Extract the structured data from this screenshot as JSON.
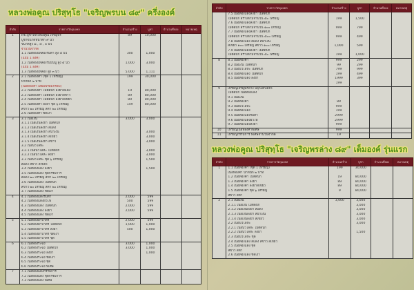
{
  "headers": [
    "ลำดับ",
    "รายการวัตถุมงคล",
    "จำนวนสร้าง",
    "บูชา",
    "จำนวนที่จอง",
    "หมายเหตุ"
  ],
  "colors": {
    "header_bg": "#6e1a22",
    "title_green": "#4f8f1e",
    "title_outline": "#f3e874"
  },
  "left": {
    "title": "หลวงพ่อคูณ ปริสุทฺโธ \"เจริญพรบน ๘๙\" ครึ่งองค์",
    "groups": [
      {
        "no": "1",
        "lines": [
          [
            "พระบูชาหลวงพ่อคูณ เจริญพร",
            "89",
            "10,000"
          ],
          [
            "บูชาขนาดหน้าตัก ๙ นิ้ว",
            "",
            ""
          ],
          [
            "ขนาดสูง ๘ , ๕ , ๓ นิ้ว",
            "",
            ""
          ],
          [
            "จำนวนจำกัด",
            "",
            "",
            1
          ],
          [
            "1.1 เนื้อทองเหลืองรมดำ สูง ๕ นิ้ว",
            "300",
            "1,000"
          ],
          [
            "(แถม 1 องค์)",
            "",
            "",
            1
          ],
          [
            "1.2 เนื้อทองเหลืองรมมันปู สูง ๕ นิ้ว",
            "1,000",
            "3,000"
          ],
          [
            "(แถม 1 องค์)",
            "",
            "",
            1
          ],
          [
            "1.3 เนื้อทองเหลือง สูง ๓ นิ้ว",
            "5,000",
            "1,111"
          ]
        ]
      },
      {
        "no": "2",
        "lines": [
          [
            "2.1 เนื้อทองคำ (ชุด 1 เหรียญ)",
            "199",
            "30,000"
          ],
          [
            "น้ำหนัก ๒ บาท",
            "",
            ""
          ],
          [
            "(เนื้อทองคำ เลี่ยมพร้อมกรอบ)",
            "",
            "",
            1
          ],
          [
            "2.2 เนื้อทองคำ ไม่ตัดปีก ลงยาสีแดง",
            "19",
            "80,000"
          ],
          [
            "2.3 เนื้อทองคำ ไม่ตัดปีก ลงยาสีขาว",
            "89",
            "80,000"
          ],
          [
            "2.4 เนื้อทองคำ ไม่ตัดปีก ลงยาสีเขียว",
            "89",
            "80,000"
          ],
          [
            "2.5 เนื้อทองคำ ลงยา ชุด ๖ เหรียญ",
            "149",
            "80,000"
          ],
          [
            "สีขาว ๒๐ เหรียญ สีดำ ๒๐ เหรียญ",
            "",
            ""
          ],
          [
            "2.6 เนื้อทองคำ ขัดเงา",
            "",
            ""
          ]
        ]
      },
      {
        "no": "3",
        "lines": [
          [
            "3.1 เนื้อเงิน",
            "3,000",
            "3,000"
          ],
          [
            "3.1.1 เนื้อเงินลงยา ไม่ตัดปีก",
            "",
            ""
          ],
          [
            "3.1.2 เนื้อเงินลงยา สีแดง",
            "",
            ""
          ],
          [
            "3.1.3 เนื้อเงินลงยา สีน้ำเงิน",
            "",
            "3,000"
          ],
          [
            "3.1.4 เนื้อเงินลงยา สีเขียว",
            "",
            "3,000"
          ],
          [
            "3.1.5 เนื้อเงินลงยา สีขาว",
            "",
            "3,000"
          ],
          [
            "3.2 เนื้อนวโลหะ",
            "",
            ""
          ],
          [
            "3.2.1 เนื้อนวโลหะ ไม่ตัดปีก",
            "",
            "3,000"
          ],
          [
            "3.2.2 เนื้อนวโลหะ ลงยา",
            "",
            "3,000"
          ],
          [
            "3.3 เนื้อนวโลหะ ชุด ๖ เหรียญ",
            "",
            "1,500"
          ],
          [
            "สีแดง สีขาว สีเขียว",
            "",
            ""
          ],
          [
            "3.4 เนื้อทองแดง ลงยา",
            "",
            "1,500"
          ],
          [
            "3.5 เนื้อทองแดง ชุดกรรมการ",
            "",
            ""
          ],
          [
            "สีแดง ๒๐ เหรียญ สีฟ้า ๒๐ เหรียญ",
            "",
            ""
          ],
          [
            "3.6 เนื้อทองแดง ไม่ตัดปีก",
            "",
            ""
          ],
          [
            "สีขาว ๒๐ เหรียญ สีดำ ๒๐ เหรียญ",
            "",
            ""
          ],
          [
            "3.7 เนื้อทองแดง ขัดเงา",
            "",
            ""
          ]
        ]
      },
      {
        "no": "4",
        "lines": [
          [
            "4.1 เนื้อทองแดงรมดำ",
            "2,000",
            "599"
          ],
          [
            "4.2 เนื้อทองแดงผิวไฟ",
            "500",
            "599"
          ],
          [
            "4.3 เนื้อทองแดง ไม่ตัดปีก",
            "2,000",
            "599"
          ],
          [
            "4.4 เนื้อทองแดง ลงยา",
            "2,000",
            "599"
          ],
          [
            "4.5 เนื้อทองแดง ขัดเงา",
            "",
            ""
          ]
        ]
      },
      {
        "no": "5",
        "lines": [
          [
            "5.1 เนื้อทองฝาบาตร",
            "2,000",
            "599"
          ],
          [
            "5.2 เนื้อทองฝาบาตร ไม่ตัดปีก",
            "1,000",
            "1,000"
          ],
          [
            "5.3 เนื้อทองฝาบาตร ลงยา",
            "500",
            "1,000"
          ],
          [
            "5.4 เนื้อทองฝาบาตร ขัดเงา",
            "",
            ""
          ],
          [
            "5.5 เนื้อทองฝาบาตร ชุด",
            "",
            ""
          ]
        ]
      },
      {
        "no": "6",
        "lines": [
          [
            "6.1 เนื้อทองระฆัง",
            "3,000",
            "1,000"
          ],
          [
            "6.2 เนื้อทองระฆัง ไม่ตัดปีก",
            "3,000",
            "1,000"
          ],
          [
            "6.3 เนื้อทองระฆัง ลงยา",
            "",
            "1,000"
          ],
          [
            "6.4 เนื้อทองระฆัง ขัดเงา",
            "",
            ""
          ],
          [
            "6.5 เนื้อทองระฆัง ชุด",
            "",
            ""
          ],
          [
            "6.6 เนื้อทองระฆัง พิเศษ",
            "",
            ""
          ]
        ]
      },
      {
        "no": "7",
        "lines": [
          [
            "7.1 เนื้อทองแดงกรรมการ",
            "",
            ""
          ],
          [
            "7.2 เนื้อทองแดง ชุดกรรมการ",
            "",
            ""
          ],
          [
            "7.3 เนื้อทองแดง พิเศษ",
            "",
            ""
          ]
        ]
      }
    ]
  },
  "right_top": {
    "groups": [
      {
        "no": "",
        "lines": [
          [
            "7.5 เนื้อทองแดงลงยา ไม่ตัดปีก",
            "",
            ""
          ],
          [
            "ไม่ตัดปีก สร้างตามจำนวน ๕๐ เหรียญ",
            "199",
            "1,500"
          ],
          [
            "7.6 เนื้อทองแดงลงยา ไม่ตัดปีก",
            "",
            ""
          ],
          [
            "ไม่ตัดปีก สร้างตามจำนวน ๑๐๐ เหรียญ",
            "999",
            "799"
          ],
          [
            "7.7 เนื้อทองแดงลงยา ไม่ตัดปีก",
            "",
            ""
          ],
          [
            "ไม่ตัดปีก สร้างตามจำนวน ๕๐๐ เหรียญ",
            "999",
            "499"
          ],
          [
            "7.8 เนื้อทองแดง สีแดง สีน้ำเงิน",
            "",
            ""
          ],
          [
            "สีเขียว ๑๐๐ เหรียญ สีขาว ๑๐๐ เหรียญ",
            "1,000",
            "599"
          ],
          [
            "7.9 เนื้อทองแดงลงยา ไม่ตัดปีก",
            "",
            ""
          ],
          [
            "ไม่ตัดปีก สร้างตามจำนวน ๕๐ เหรียญ",
            "199",
            "1,000"
          ]
        ]
      },
      {
        "no": "8",
        "lines": [
          [
            "8.1 เนื้อทองคำ",
            "999",
            "299"
          ],
          [
            "8.2 เนื้อเงิน ไม่ตัดปีก",
            "99",
            "299"
          ],
          [
            "8.3 เนื้อนวโลหะ ไม่ตัดปีก",
            "799",
            "999"
          ],
          [
            "8.4 เนื้อทองแดง ไม่ตัดปีก",
            "199",
            "499"
          ],
          [
            "8.5 เนื้อทองแดง ลงยา",
            "1999",
            "399"
          ],
          [
            "",
            "199",
            ""
          ]
        ]
      },
      {
        "no": "9",
        "lines": [
          [
            "เหรียญเจริญพรล่าง ปลุกเสกเดี่ยว",
            "",
            ""
          ],
          [
            "ไม่ตัดปีก เนื้อทองแดง",
            "",
            ""
          ],
          [
            "9.1 เนื้อเงิน",
            "",
            ""
          ],
          [
            "9.2 เนื้อทองคำ",
            "89",
            ""
          ],
          [
            "9.3 เนื้อนวโลหะ",
            "999",
            ""
          ],
          [
            "9.4 เนื้อทองแดง",
            "199",
            ""
          ],
          [
            "9.5 เนื้อทองแดงรมดำ",
            "2999",
            ""
          ],
          [
            "9.6 เนื้อทองแดงผิวไฟ",
            "2999",
            ""
          ],
          [
            "9.7 เนื้อทองแดงลงยา",
            "999",
            ""
          ]
        ]
      },
      {
        "no": "10",
        "lines": [
          [
            "เหรียญเนื้อทองคำพิเศษ",
            "999",
            ""
          ]
        ]
      },
      {
        "no": "11",
        "lines": [
          [
            "เหรียญกรรมการ พิเศษจำนวนจำกัด",
            "19",
            ""
          ]
        ]
      }
    ]
  },
  "right_bottom": {
    "title": "หลวงพ่อคูณ ปริสุทฺโธ \"เจริญพรล่าง ๘๙\" เต็มองค์ รุ่นแรก",
    "groups": [
      {
        "no": "1",
        "lines": [
          [
            "1.1 เนื้อทองคำ (ชุด 1 เหรียญ)",
            "199",
            "30,000"
          ],
          [
            "เนื้อทองคำ น้ำหนัก ๒ บาท",
            "",
            ""
          ],
          [
            "1.2 เนื้อทองคำ ไม่ตัดปีก",
            "19",
            "80,000"
          ],
          [
            "1.3 เนื้อทองคำ ลงยา",
            "89",
            "80,000"
          ],
          [
            "1.4 เนื้อทองคำ ลงยาสีเขียว",
            "89",
            "80,000"
          ],
          [
            "1.5 เนื้อทองคำ ชุด ๖ เหรียญ",
            "9",
            "80,000"
          ],
          [
            "สีขาว สีดำ",
            "",
            ""
          ]
        ]
      },
      {
        "no": "2",
        "lines": [
          [
            "2.1 เนื้อเงิน",
            "3,000",
            "3,000"
          ],
          [
            "2.1.1 เนื้อเงิน ไม่ตัดปีก",
            "",
            "3,000"
          ],
          [
            "2.1.2 เนื้อเงินลงยา สีแดง",
            "",
            "3,000"
          ],
          [
            "2.1.3 เนื้อเงินลงยา สีน้ำเงิน",
            "",
            "3,000"
          ],
          [
            "2.1.4 เนื้อเงินลงยา สีเขียว",
            "",
            "3,000"
          ],
          [
            "2.2 เนื้อนวโลหะ",
            "",
            "3,000"
          ],
          [
            "2.2.1 เนื้อนวโลหะ ไม่ตัดปีก",
            "",
            ""
          ],
          [
            "2.2.2 เนื้อนวโลหะ ลงยา",
            "",
            "1,500"
          ],
          [
            "2.3 เนื้อนวโลหะ ชุด",
            "",
            ""
          ],
          [
            "2.4 เนื้อทองแดง สีแดง สีขาว สีเขียว",
            "",
            ""
          ],
          [
            "2.5 เนื้อทองแดง ชุด",
            "",
            ""
          ],
          [
            "สีขาว สีดำ",
            "",
            ""
          ],
          [
            "2.6 เนื้อทองแดง ขัดเงา",
            "",
            ""
          ]
        ]
      }
    ]
  }
}
